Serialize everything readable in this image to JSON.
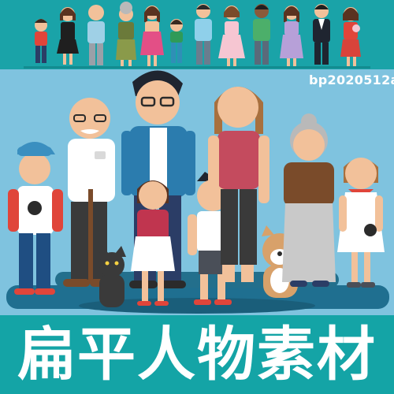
{
  "image": {
    "code_label": "bp2020512a",
    "title": "扁平人物素材"
  },
  "colors": {
    "teal": "#1aa3a8",
    "sky": "#7fc3df",
    "platform": "#1f6f90",
    "white": "#ffffff"
  }
}
